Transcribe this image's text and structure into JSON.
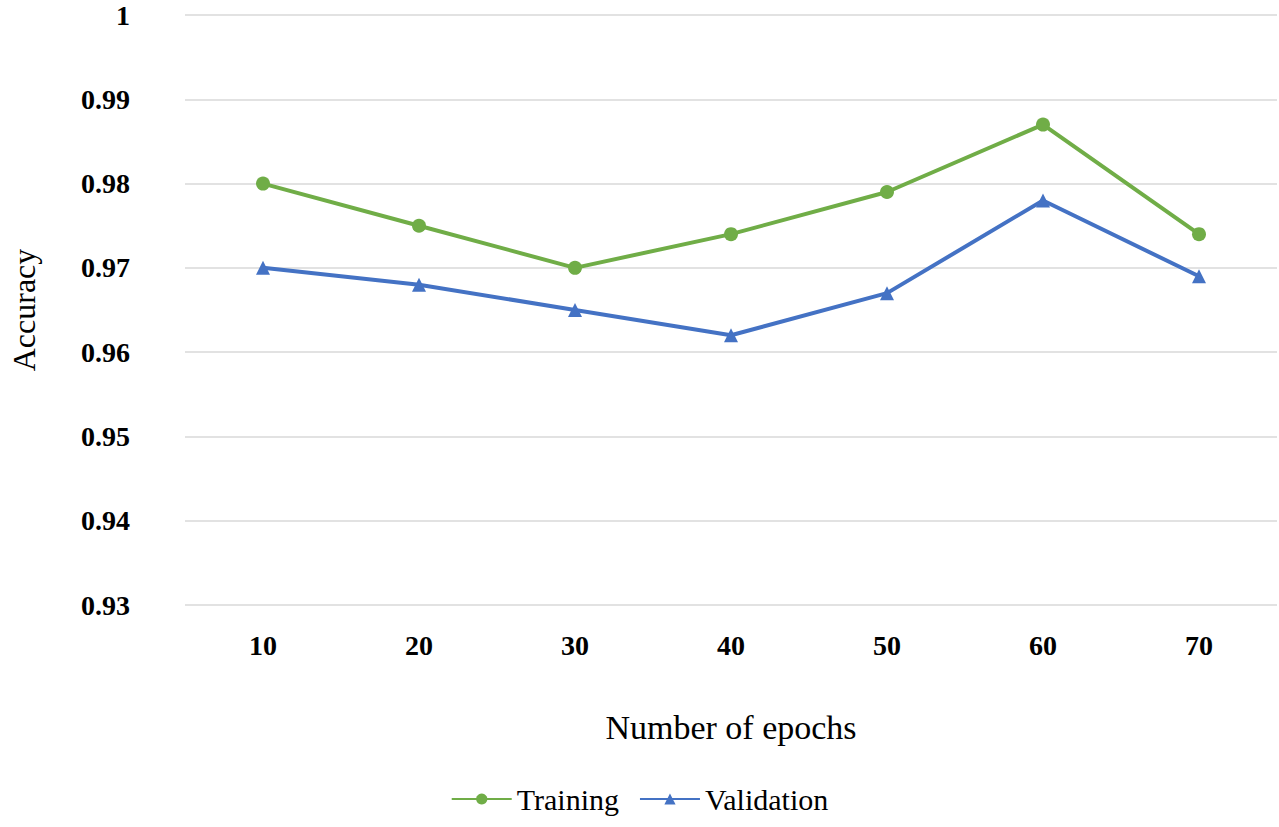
{
  "chart_data": {
    "type": "line",
    "xlabel": "Number of epochs",
    "ylabel": "Accuracy",
    "categories": [
      "10",
      "20",
      "30",
      "40",
      "50",
      "60",
      "70"
    ],
    "series": [
      {
        "name": "Training",
        "color": "#70ad47",
        "marker": "circle",
        "values": [
          0.98,
          0.975,
          0.97,
          0.974,
          0.979,
          0.987,
          0.974
        ]
      },
      {
        "name": "Validation",
        "color": "#4472c4",
        "marker": "triangle",
        "values": [
          0.97,
          0.968,
          0.965,
          0.962,
          0.967,
          0.978,
          0.969
        ]
      }
    ],
    "ylim": [
      0.93,
      1
    ],
    "yticks": [
      0.93,
      0.94,
      0.95,
      0.96,
      0.97,
      0.98,
      0.99,
      1
    ],
    "grid": true,
    "legend": "bottom"
  }
}
